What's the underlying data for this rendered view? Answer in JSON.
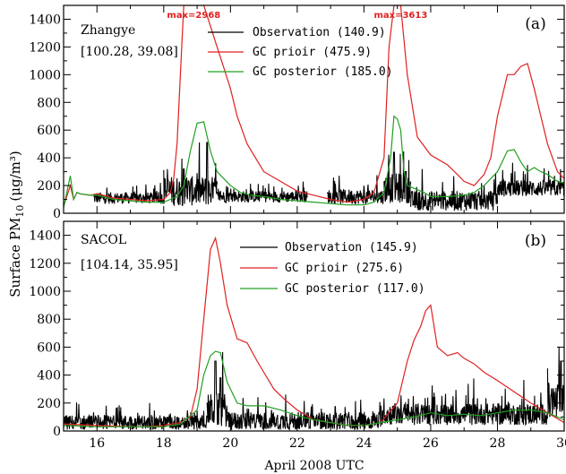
{
  "chart_data": {
    "type": "line",
    "shared_x": {
      "label": "April 2008 UTC",
      "range": [
        15,
        30
      ],
      "ticks": [
        16,
        18,
        20,
        22,
        24,
        26,
        28,
        30
      ]
    },
    "y_label_main": "Surface PM",
    "y_label_sub": "10",
    "y_label_units": "(μg/m³)",
    "colors": {
      "observation": "#000000",
      "prior": "#e02020",
      "posterior": "#20a020"
    },
    "panels": [
      {
        "id": "a",
        "letter": "(a)",
        "station": "Zhangye",
        "coords": "[100.28, 39.08]",
        "ylim": [
          0,
          1500
        ],
        "yticks": [
          0,
          200,
          400,
          600,
          800,
          1000,
          1200,
          1400
        ],
        "annotations": [
          {
            "text": "max=2968",
            "x": 18.9
          },
          {
            "text": "max=3613",
            "x": 25.1
          }
        ],
        "legend": [
          {
            "label": "Observation (140.9)",
            "series": "observation"
          },
          {
            "label": "GC prioir (475.9)",
            "series": "prior"
          },
          {
            "label": "GC posterior (185.0)",
            "series": "posterior"
          }
        ],
        "series": [
          {
            "key": "prior",
            "x": [
              15.0,
              15.2,
              15.3,
              15.4,
              15.5,
              15.8,
              16.0,
              16.5,
              17.0,
              17.5,
              18.0,
              18.2,
              18.3,
              18.4,
              18.5,
              18.6,
              18.7,
              18.9,
              19.2,
              19.4,
              19.6,
              19.8,
              20.0,
              20.2,
              20.5,
              20.8,
              21.0,
              21.5,
              22.0,
              22.5,
              23.0,
              23.5,
              24.0,
              24.3,
              24.6,
              24.75,
              24.9,
              25.0,
              25.1,
              25.3,
              25.6,
              26.0,
              26.5,
              26.8,
              27.0,
              27.3,
              27.6,
              27.8,
              28.0,
              28.3,
              28.5,
              28.7,
              28.9,
              29.1,
              29.3,
              29.5,
              29.8,
              30.0
            ],
            "y": [
              50,
              200,
              100,
              150,
              140,
              130,
              140,
              110,
              100,
              90,
              100,
              150,
              250,
              500,
              1000,
              1500,
              1500,
              1500,
              1500,
              1350,
              1200,
              1050,
              900,
              700,
              500,
              380,
              300,
              230,
              160,
              130,
              100,
              80,
              100,
              150,
              400,
              1200,
              1500,
              1500,
              1500,
              1000,
              550,
              420,
              350,
              280,
              230,
              200,
              280,
              400,
              700,
              1000,
              1000,
              1060,
              1080,
              900,
              700,
              500,
              300,
              250
            ]
          },
          {
            "key": "posterior",
            "x": [
              15.0,
              15.2,
              15.3,
              15.4,
              15.5,
              15.8,
              16.0,
              16.5,
              17.0,
              17.5,
              18.0,
              18.2,
              18.4,
              18.6,
              18.8,
              19.0,
              19.2,
              19.4,
              19.6,
              19.8,
              20.0,
              20.3,
              20.6,
              21.0,
              21.5,
              22.0,
              22.5,
              23.0,
              23.5,
              24.0,
              24.3,
              24.6,
              24.8,
              24.9,
              25.0,
              25.1,
              25.2,
              25.3,
              25.5,
              25.8,
              26.0,
              26.5,
              27.0,
              27.3,
              27.6,
              27.8,
              28.0,
              28.3,
              28.5,
              28.7,
              28.9,
              29.1,
              29.3,
              29.5,
              29.8,
              30.0
            ],
            "y": [
              40,
              270,
              100,
              150,
              140,
              130,
              130,
              100,
              90,
              80,
              80,
              100,
              120,
              200,
              450,
              650,
              660,
              450,
              300,
              250,
              200,
              150,
              130,
              120,
              100,
              90,
              80,
              70,
              60,
              60,
              80,
              150,
              400,
              700,
              680,
              600,
              300,
              200,
              180,
              150,
              120,
              120,
              130,
              150,
              200,
              250,
              300,
              450,
              460,
              370,
              300,
              330,
              300,
              280,
              230,
              220
            ]
          }
        ],
        "observation": {
          "gaps": [
            [
              22.3,
              22.9
            ]
          ],
          "segments": [
            {
              "start": 15.9,
              "end": 18.0,
              "base": 110,
              "amp": 70
            },
            {
              "start": 18.0,
              "end": 19.6,
              "base": 160,
              "amp": 180,
              "spikes": [
                [
                  18.6,
                  320
                ],
                [
                  19.3,
                  510
                ]
              ]
            },
            {
              "start": 19.6,
              "end": 22.3,
              "base": 120,
              "amp": 70
            },
            {
              "start": 22.9,
              "end": 24.6,
              "base": 120,
              "amp": 90
            },
            {
              "start": 24.6,
              "end": 25.4,
              "base": 180,
              "amp": 180,
              "spikes": [
                [
                  24.9,
                  440
                ],
                [
                  25.25,
                  300
                ]
              ]
            },
            {
              "start": 25.4,
              "end": 28.0,
              "base": 90,
              "amp": 120
            },
            {
              "start": 28.0,
              "end": 30.0,
              "base": 180,
              "amp": 100
            }
          ]
        }
      },
      {
        "id": "b",
        "letter": "(b)",
        "station": "SACOL",
        "coords": "[104.14, 35.95]",
        "ylim": [
          0,
          1500
        ],
        "yticks": [
          0,
          200,
          400,
          600,
          800,
          1000,
          1200,
          1400
        ],
        "annotations": [],
        "legend": [
          {
            "label": "Observation (145.9)",
            "series": "observation"
          },
          {
            "label": "GC prioir (275.6)",
            "series": "prior"
          },
          {
            "label": "GC posterior (117.0)",
            "series": "posterior"
          }
        ],
        "series": [
          {
            "key": "prior",
            "x": [
              15.0,
              15.5,
              16.0,
              16.5,
              17.0,
              17.5,
              18.0,
              18.5,
              18.8,
              19.0,
              19.2,
              19.4,
              19.55,
              19.7,
              19.9,
              20.2,
              20.5,
              20.8,
              21.0,
              21.3,
              21.6,
              22.0,
              22.5,
              23.0,
              23.5,
              24.0,
              24.5,
              25.0,
              25.3,
              25.5,
              25.7,
              25.85,
              26.0,
              26.2,
              26.5,
              26.8,
              27.0,
              27.3,
              27.6,
              28.0,
              28.5,
              29.0,
              29.5,
              30.0
            ],
            "y": [
              50,
              45,
              40,
              35,
              30,
              30,
              40,
              60,
              100,
              300,
              800,
              1300,
              1380,
              1200,
              900,
              660,
              630,
              500,
              420,
              300,
              230,
              150,
              80,
              60,
              40,
              40,
              60,
              200,
              500,
              650,
              750,
              860,
              900,
              600,
              540,
              560,
              520,
              480,
              420,
              360,
              280,
              200,
              130,
              60
            ]
          },
          {
            "key": "posterior",
            "x": [
              15.0,
              15.5,
              16.0,
              16.5,
              17.0,
              17.5,
              18.0,
              18.5,
              19.0,
              19.2,
              19.4,
              19.55,
              19.7,
              19.9,
              20.2,
              20.5,
              21.0,
              21.5,
              22.0,
              22.5,
              23.0,
              23.5,
              24.0,
              24.5,
              25.0,
              25.5,
              26.0,
              26.5,
              27.0,
              27.5,
              28.0,
              28.5,
              29.0,
              29.5,
              30.0
            ],
            "y": [
              40,
              35,
              30,
              30,
              30,
              30,
              30,
              50,
              150,
              400,
              540,
              570,
              560,
              350,
              200,
              180,
              180,
              150,
              110,
              80,
              60,
              40,
              40,
              60,
              80,
              100,
              130,
              110,
              120,
              110,
              130,
              150,
              150,
              130,
              80
            ]
          }
        ],
        "observation": {
          "gaps": [],
          "segments": [
            {
              "start": 15.0,
              "end": 19.3,
              "base": 60,
              "amp": 90
            },
            {
              "start": 19.3,
              "end": 19.9,
              "base": 150,
              "amp": 200,
              "spikes": [
                [
                  19.55,
                  500
                ],
                [
                  19.7,
                  380
                ]
              ]
            },
            {
              "start": 19.9,
              "end": 24.5,
              "base": 70,
              "amp": 110
            },
            {
              "start": 24.5,
              "end": 29.5,
              "base": 120,
              "amp": 130
            },
            {
              "start": 29.5,
              "end": 30.0,
              "base": 200,
              "amp": 250,
              "spikes": [
                [
                  29.9,
                  500
                ]
              ]
            }
          ]
        }
      }
    ]
  }
}
